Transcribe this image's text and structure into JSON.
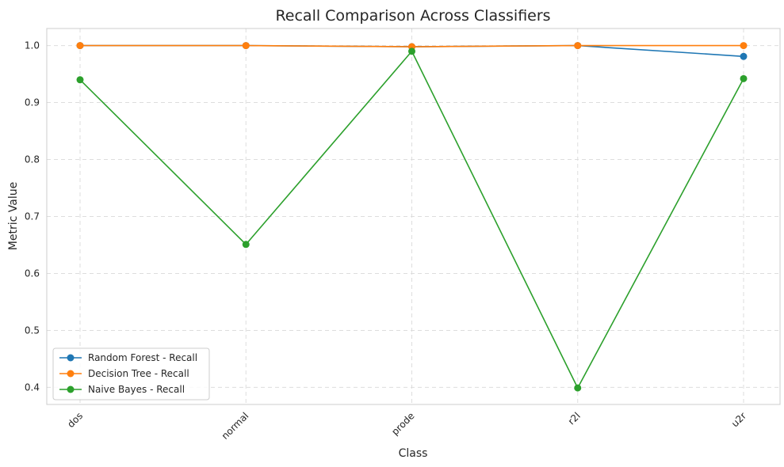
{
  "chart_data": {
    "type": "line",
    "title": "Recall Comparison Across Classifiers",
    "xlabel": "Class",
    "ylabel": "Metric Value",
    "categories": [
      "dos",
      "normal",
      "prode",
      "r2l",
      "u2r"
    ],
    "ylim": [
      0.37,
      1.03
    ],
    "yticks": [
      0.4,
      0.5,
      0.6,
      0.7,
      0.8,
      0.9,
      1.0
    ],
    "ytick_labels": [
      "0.4",
      "0.5",
      "0.6",
      "0.7",
      "0.8",
      "0.9",
      "1.0"
    ],
    "grid": true,
    "legend_position": "lower-left",
    "series": [
      {
        "name": "Random Forest - Recall",
        "color": "#1f77b4",
        "values": [
          1.0,
          1.0,
          0.998,
          1.0,
          0.981
        ]
      },
      {
        "name": "Decision Tree - Recall",
        "color": "#ff7f0e",
        "values": [
          1.0,
          1.0,
          0.998,
          1.0,
          1.0
        ]
      },
      {
        "name": "Naive Bayes - Recall",
        "color": "#2ca02c",
        "values": [
          0.94,
          0.651,
          0.99,
          0.399,
          0.942
        ]
      }
    ]
  }
}
